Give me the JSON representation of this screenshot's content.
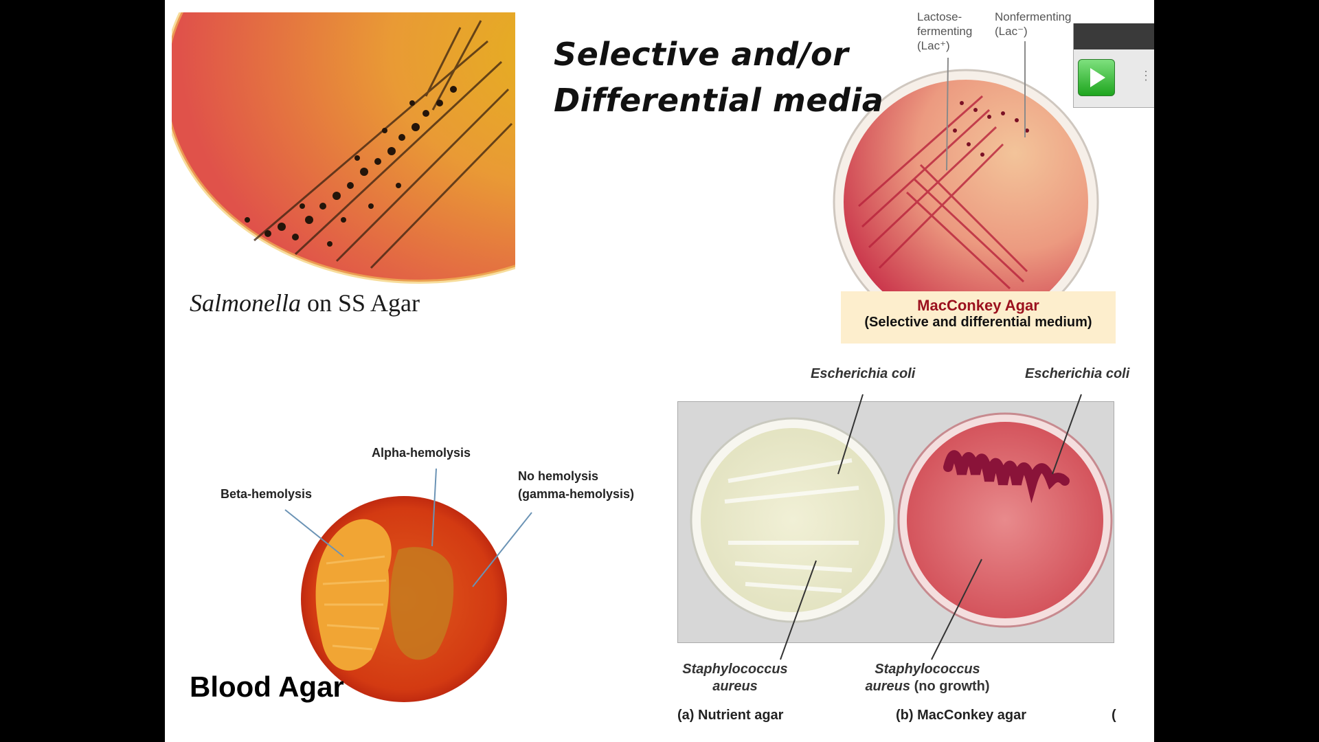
{
  "title": {
    "line1": "Selective and/or",
    "line2": "Differential media"
  },
  "ss_agar": {
    "caption_italic": "Salmonella",
    "caption_rest": " on SS Agar"
  },
  "macconkey_plate": {
    "lactose_label": [
      "Lactose-",
      "fermenting",
      "(Lac⁺)"
    ],
    "nonfermenting_label": [
      "Nonfermenting",
      "(Lac⁻)"
    ],
    "box_title": "MacConkey Agar",
    "box_subtitle": "(Selective and differential medium)"
  },
  "blood_agar": {
    "alpha_label": "Alpha-hemolysis",
    "beta_label": "Beta-hemolysis",
    "gamma_label_1": "No hemolysis",
    "gamma_label_2": "(gamma-hemolysis)",
    "title": "Blood Agar"
  },
  "comparison": {
    "ecoli_left": "Escherichia coli",
    "ecoli_right": "Escherichia coli",
    "staph_left_1": "Staphylococcus",
    "staph_left_2": "aureus",
    "staph_right_1": "Staphylococcus",
    "staph_right_2_italic": "aureus",
    "staph_right_2_rest": " (no growth)",
    "caption_a": "(a) Nutrient agar",
    "caption_b": "(b) MacConkey agar",
    "caption_c": "("
  },
  "colors": {
    "background": "#000000",
    "slide": "#ffffff",
    "mac_title": "#9b111e",
    "mac_box": "#fdeecd"
  },
  "player": {
    "play_icon": "play-icon"
  }
}
